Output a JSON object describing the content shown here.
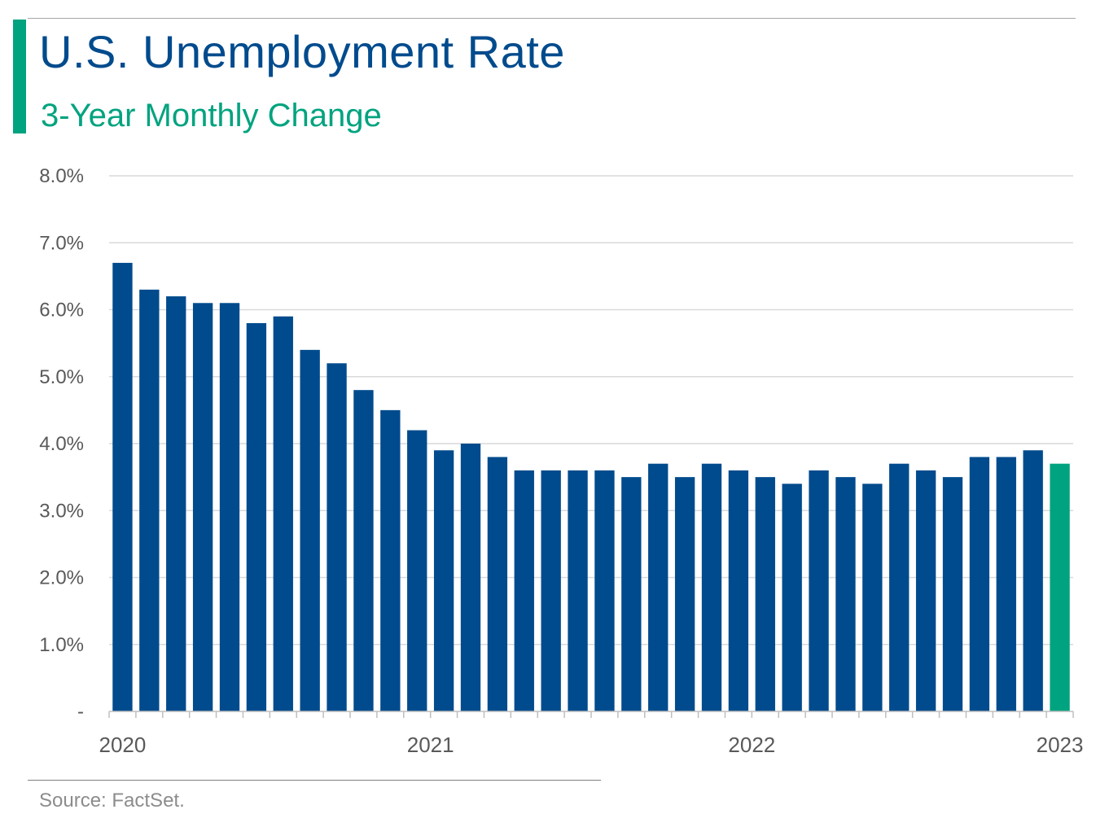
{
  "header": {
    "title": "U.S. Unemployment Rate",
    "subtitle": "3-Year Monthly Change"
  },
  "footer": {
    "source": "Source: FactSet."
  },
  "colors": {
    "bar": "#004b8d",
    "highlight": "#00a37f",
    "grid": "#d9d9d9",
    "axis_text": "#595959"
  },
  "chart_data": {
    "type": "bar",
    "title": "U.S. Unemployment Rate",
    "subtitle": "3-Year Monthly Change",
    "xlabel": "",
    "ylabel": "",
    "ylim": [
      0,
      8
    ],
    "y_ticks": [
      {
        "value": 0,
        "label": "-"
      },
      {
        "value": 1,
        "label": "1.0%"
      },
      {
        "value": 2,
        "label": "2.0%"
      },
      {
        "value": 3,
        "label": "3.0%"
      },
      {
        "value": 4,
        "label": "4.0%"
      },
      {
        "value": 5,
        "label": "5.0%"
      },
      {
        "value": 6,
        "label": "6.0%"
      },
      {
        "value": 7,
        "label": "7.0%"
      },
      {
        "value": 8,
        "label": "8.0%"
      }
    ],
    "x_tick_labels": [
      {
        "index": 0,
        "label": "2020"
      },
      {
        "index": 11.5,
        "label": "2021"
      },
      {
        "index": 23.5,
        "label": "2022"
      },
      {
        "index": 35,
        "label": "2023"
      }
    ],
    "grid": true,
    "legend": "none",
    "values": [
      6.7,
      6.3,
      6.2,
      6.1,
      6.1,
      5.8,
      5.9,
      5.4,
      5.2,
      4.8,
      4.5,
      4.2,
      3.9,
      4.0,
      3.8,
      3.6,
      3.6,
      3.6,
      3.6,
      3.5,
      3.7,
      3.5,
      3.7,
      3.6,
      3.5,
      3.4,
      3.6,
      3.5,
      3.4,
      3.7,
      3.6,
      3.5,
      3.8,
      3.8,
      3.9,
      3.7
    ],
    "highlight_index": 35
  }
}
